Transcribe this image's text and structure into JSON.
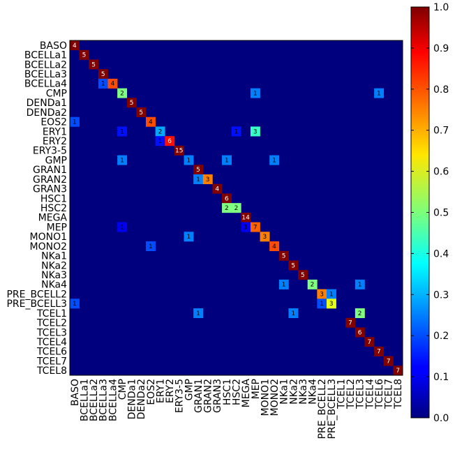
{
  "chart_data": {
    "type": "heatmap",
    "title": "",
    "xlabel": "",
    "ylabel": "",
    "colormap": "jet",
    "colorbar": {
      "range": [
        0.0,
        1.0
      ],
      "ticks": [
        "0.0",
        "0.1",
        "0.2",
        "0.3",
        "0.4",
        "0.5",
        "0.6",
        "0.7",
        "0.8",
        "0.9",
        "1.0"
      ]
    },
    "labels": [
      "BASO",
      "BCELLa1",
      "BCELLa2",
      "BCELLa3",
      "BCELLa4",
      "CMP",
      "DENDa1",
      "DENDa2",
      "EOS2",
      "ERY1",
      "ERY2",
      "ERY3-5",
      "GMP",
      "GRAN1",
      "GRAN2",
      "GRAN3",
      "HSC1",
      "HSC2",
      "MEGA",
      "MEP",
      "MONO1",
      "MONO2",
      "NKa1",
      "NKa2",
      "NKa3",
      "NKa4",
      "PRE_BCELL2",
      "PRE_BCELL3",
      "TCEL1",
      "TCEL2",
      "TCEL3",
      "TCEL4",
      "TCEL6",
      "TCEL7",
      "TCEL8"
    ],
    "cells": [
      {
        "row": 0,
        "col": 0,
        "count": "4",
        "value": 1.0
      },
      {
        "row": 1,
        "col": 1,
        "count": "5",
        "value": 1.0
      },
      {
        "row": 2,
        "col": 2,
        "count": "5",
        "value": 1.0
      },
      {
        "row": 3,
        "col": 3,
        "count": "5",
        "value": 1.0
      },
      {
        "row": 4,
        "col": 3,
        "count": "1",
        "value": 0.2
      },
      {
        "row": 4,
        "col": 4,
        "count": "4",
        "value": 0.8
      },
      {
        "row": 5,
        "col": 5,
        "count": "2",
        "value": 0.5
      },
      {
        "row": 5,
        "col": 19,
        "count": "1",
        "value": 0.25
      },
      {
        "row": 5,
        "col": 32,
        "count": "1",
        "value": 0.25
      },
      {
        "row": 6,
        "col": 6,
        "count": "5",
        "value": 1.0
      },
      {
        "row": 7,
        "col": 7,
        "count": "5",
        "value": 1.0
      },
      {
        "row": 8,
        "col": 0,
        "count": "1",
        "value": 0.2
      },
      {
        "row": 8,
        "col": 8,
        "count": "4",
        "value": 0.8
      },
      {
        "row": 9,
        "col": 5,
        "count": "1",
        "value": 0.14
      },
      {
        "row": 9,
        "col": 9,
        "count": "2",
        "value": 0.29
      },
      {
        "row": 9,
        "col": 17,
        "count": "1",
        "value": 0.14
      },
      {
        "row": 9,
        "col": 19,
        "count": "3",
        "value": 0.43
      },
      {
        "row": 10,
        "col": 9,
        "count": "1",
        "value": 0.14
      },
      {
        "row": 10,
        "col": 10,
        "count": "6",
        "value": 0.86
      },
      {
        "row": 11,
        "col": 11,
        "count": "15",
        "value": 1.0
      },
      {
        "row": 12,
        "col": 5,
        "count": "1",
        "value": 0.25
      },
      {
        "row": 12,
        "col": 12,
        "count": "1",
        "value": 0.25
      },
      {
        "row": 12,
        "col": 16,
        "count": "1",
        "value": 0.25
      },
      {
        "row": 12,
        "col": 21,
        "count": "1",
        "value": 0.25
      },
      {
        "row": 13,
        "col": 13,
        "count": "5",
        "value": 1.0
      },
      {
        "row": 14,
        "col": 13,
        "count": "1",
        "value": 0.25
      },
      {
        "row": 14,
        "col": 14,
        "count": "3",
        "value": 0.75
      },
      {
        "row": 15,
        "col": 15,
        "count": "4",
        "value": 1.0
      },
      {
        "row": 16,
        "col": 16,
        "count": "6",
        "value": 1.0
      },
      {
        "row": 17,
        "col": 16,
        "count": "2",
        "value": 0.5
      },
      {
        "row": 17,
        "col": 17,
        "count": "2",
        "value": 0.5
      },
      {
        "row": 18,
        "col": 18,
        "count": "14",
        "value": 1.0
      },
      {
        "row": 19,
        "col": 5,
        "count": "1",
        "value": 0.11
      },
      {
        "row": 19,
        "col": 18,
        "count": "1",
        "value": 0.11
      },
      {
        "row": 19,
        "col": 19,
        "count": "7",
        "value": 0.78
      },
      {
        "row": 20,
        "col": 12,
        "count": "1",
        "value": 0.25
      },
      {
        "row": 20,
        "col": 20,
        "count": "3",
        "value": 0.75
      },
      {
        "row": 21,
        "col": 8,
        "count": "1",
        "value": 0.2
      },
      {
        "row": 21,
        "col": 21,
        "count": "4",
        "value": 0.8
      },
      {
        "row": 22,
        "col": 22,
        "count": "5",
        "value": 1.0
      },
      {
        "row": 23,
        "col": 23,
        "count": "5",
        "value": 1.0
      },
      {
        "row": 24,
        "col": 24,
        "count": "5",
        "value": 1.0
      },
      {
        "row": 25,
        "col": 22,
        "count": "1",
        "value": 0.25
      },
      {
        "row": 25,
        "col": 25,
        "count": "2",
        "value": 0.5
      },
      {
        "row": 25,
        "col": 30,
        "count": "1",
        "value": 0.25
      },
      {
        "row": 26,
        "col": 26,
        "count": "3",
        "value": 0.75
      },
      {
        "row": 26,
        "col": 27,
        "count": "1",
        "value": 0.25
      },
      {
        "row": 27,
        "col": 0,
        "count": "1",
        "value": 0.2
      },
      {
        "row": 27,
        "col": 26,
        "count": "1",
        "value": 0.2
      },
      {
        "row": 27,
        "col": 27,
        "count": "3",
        "value": 0.6
      },
      {
        "row": 28,
        "col": 13,
        "count": "1",
        "value": 0.25
      },
      {
        "row": 28,
        "col": 23,
        "count": "1",
        "value": 0.25
      },
      {
        "row": 28,
        "col": 30,
        "count": "2",
        "value": 0.5
      },
      {
        "row": 29,
        "col": 29,
        "count": "7",
        "value": 1.0
      },
      {
        "row": 30,
        "col": 30,
        "count": "6",
        "value": 1.0
      },
      {
        "row": 31,
        "col": 31,
        "count": "7",
        "value": 1.0
      },
      {
        "row": 32,
        "col": 32,
        "count": "7",
        "value": 1.0
      },
      {
        "row": 33,
        "col": 33,
        "count": "7",
        "value": 1.0
      },
      {
        "row": 34,
        "col": 34,
        "count": "7",
        "value": 1.0
      }
    ]
  }
}
